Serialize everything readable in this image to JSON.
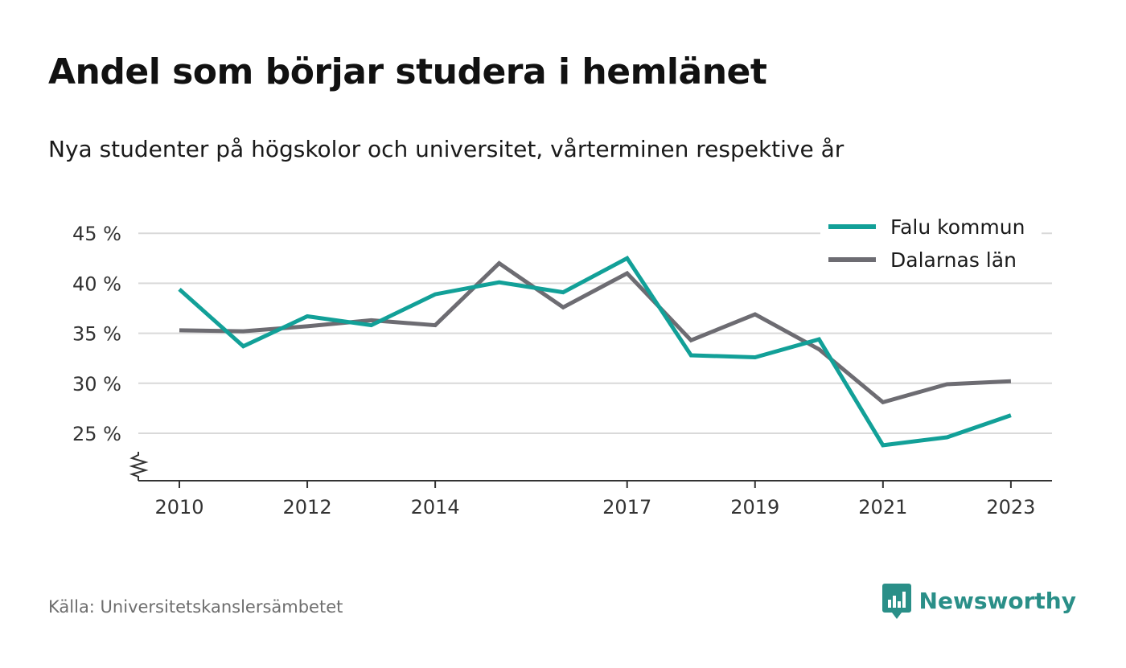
{
  "title": "Andel som börjar studera i hemlänet",
  "subtitle": "Nya studenter på högskolor och universitet, vårterminen respektive år",
  "source": "Källa: Universitetskanslersämbetet",
  "brand": "Newsworthy",
  "colors": {
    "falu": "#12a098",
    "dalarna": "#6d6c72",
    "grid": "#d9d9d9",
    "axis": "#333333",
    "brand": "#2a8f88"
  },
  "chart_data": {
    "type": "line",
    "x": [
      2010,
      2011,
      2012,
      2013,
      2014,
      2015,
      2016,
      2017,
      2018,
      2019,
      2020,
      2021,
      2022,
      2023
    ],
    "x_ticks": [
      "2010",
      "2012",
      "2014",
      "2017",
      "2019",
      "2021",
      "2023"
    ],
    "y_ticks": [
      25,
      30,
      35,
      40,
      45
    ],
    "y_tick_labels": [
      "25 %",
      "30 %",
      "35 %",
      "40 %",
      "45 %"
    ],
    "ylim": [
      20,
      45
    ],
    "axis_break": true,
    "grid": true,
    "legend_position": "top-right",
    "series": [
      {
        "name": "Falu kommun",
        "color": "#12a098",
        "values": [
          39.4,
          33.7,
          36.7,
          35.8,
          38.9,
          40.1,
          39.1,
          42.5,
          32.8,
          32.6,
          34.4,
          23.8,
          24.6,
          26.8
        ]
      },
      {
        "name": "Dalarnas län",
        "color": "#6d6c72",
        "values": [
          35.3,
          35.2,
          35.7,
          36.3,
          35.8,
          42.0,
          37.6,
          41.0,
          34.3,
          36.9,
          33.4,
          28.1,
          29.9,
          30.2
        ]
      }
    ]
  }
}
